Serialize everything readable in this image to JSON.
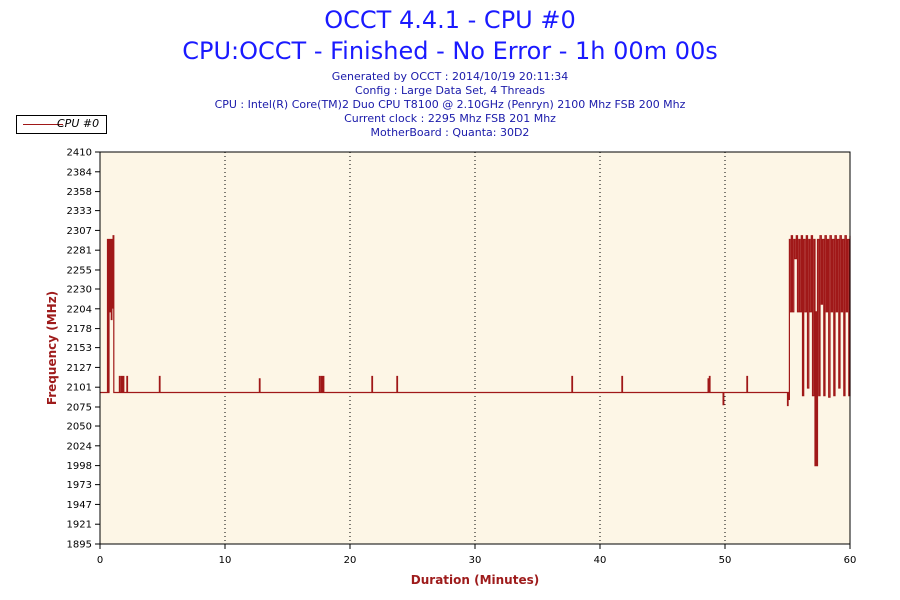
{
  "header": {
    "title": "OCCT 4.4.1 - CPU #0",
    "subtitle": "CPU:OCCT - Finished - No Error - 1h 00m 00s",
    "info": [
      "Generated by OCCT : 2014/10/19 20:11:34",
      "Config : Large Data Set, 4 Threads",
      "CPU : Intel(R) Core(TM)2 Duo CPU T8100 @ 2.10GHz (Penryn) 2100 Mhz FSB 200 Mhz",
      "Current clock : 2295 Mhz FSB 201 Mhz",
      "MotherBoard : Quanta: 30D2"
    ]
  },
  "colors": {
    "series": "#a01818",
    "plot_bg": "#fdf6e6",
    "axis_label": "#9e1b1b",
    "title": "#1a1aff"
  },
  "chart_data": {
    "type": "line",
    "title": "OCCT 4.4.1 - CPU #0",
    "xlabel": "Duration (Minutes)",
    "ylabel": "Frequency (MHz)",
    "xlim": [
      0,
      60
    ],
    "ylim": [
      1895,
      2410
    ],
    "x_ticks": [
      0,
      10,
      20,
      30,
      40,
      50,
      60
    ],
    "y_ticks": [
      1895,
      1921,
      1947,
      1973,
      1998,
      2024,
      2050,
      2075,
      2101,
      2127,
      2153,
      2178,
      2204,
      2230,
      2255,
      2281,
      2307,
      2333,
      2358,
      2384,
      2410
    ],
    "grid": "vertical dotted at x ticks",
    "legend": {
      "position": "top-left",
      "entries": [
        "CPU #0"
      ]
    },
    "series": [
      {
        "name": "CPU #0",
        "baseline_mhz": 2094,
        "points": [
          [
            0.55,
            2094
          ],
          [
            0.6,
            2295
          ],
          [
            0.65,
            2094
          ],
          [
            0.72,
            2295
          ],
          [
            0.78,
            2200
          ],
          [
            0.85,
            2295
          ],
          [
            0.9,
            2190
          ],
          [
            0.95,
            2295
          ],
          [
            1.0,
            2205
          ],
          [
            1.05,
            2300
          ],
          [
            1.1,
            2094
          ],
          [
            1.5,
            2094
          ],
          [
            1.55,
            2115
          ],
          [
            1.6,
            2094
          ],
          [
            1.7,
            2115
          ],
          [
            1.75,
            2094
          ],
          [
            1.85,
            2115
          ],
          [
            1.9,
            2094
          ],
          [
            2.1,
            2094
          ],
          [
            2.15,
            2115
          ],
          [
            2.2,
            2094
          ],
          [
            4.7,
            2094
          ],
          [
            4.75,
            2115
          ],
          [
            4.8,
            2094
          ],
          [
            12.7,
            2094
          ],
          [
            12.75,
            2112
          ],
          [
            12.8,
            2094
          ],
          [
            17.5,
            2094
          ],
          [
            17.55,
            2115
          ],
          [
            17.6,
            2094
          ],
          [
            17.7,
            2115
          ],
          [
            17.75,
            2094
          ],
          [
            17.85,
            2115
          ],
          [
            17.9,
            2094
          ],
          [
            21.7,
            2094
          ],
          [
            21.75,
            2115
          ],
          [
            21.8,
            2094
          ],
          [
            23.7,
            2094
          ],
          [
            23.75,
            2115
          ],
          [
            23.8,
            2094
          ],
          [
            37.7,
            2094
          ],
          [
            37.75,
            2115
          ],
          [
            37.8,
            2094
          ],
          [
            41.7,
            2094
          ],
          [
            41.75,
            2115
          ],
          [
            41.8,
            2094
          ],
          [
            48.6,
            2094
          ],
          [
            48.65,
            2112
          ],
          [
            48.7,
            2094
          ],
          [
            48.75,
            2115
          ],
          [
            48.8,
            2094
          ],
          [
            49.8,
            2094
          ],
          [
            49.85,
            2078
          ],
          [
            49.9,
            2094
          ],
          [
            51.7,
            2094
          ],
          [
            51.75,
            2115
          ],
          [
            51.8,
            2094
          ],
          [
            54.9,
            2094
          ],
          [
            55.0,
            2077
          ],
          [
            55.05,
            2094
          ],
          [
            55.1,
            2085
          ],
          [
            55.15,
            2295
          ],
          [
            55.2,
            2200
          ],
          [
            55.3,
            2300
          ],
          [
            55.4,
            2200
          ],
          [
            55.5,
            2295
          ],
          [
            55.6,
            2270
          ],
          [
            55.7,
            2300
          ],
          [
            55.8,
            2200
          ],
          [
            55.9,
            2295
          ],
          [
            56.0,
            2200
          ],
          [
            56.1,
            2300
          ],
          [
            56.2,
            2090
          ],
          [
            56.3,
            2295
          ],
          [
            56.4,
            2200
          ],
          [
            56.5,
            2300
          ],
          [
            56.6,
            2100
          ],
          [
            56.7,
            2295
          ],
          [
            56.8,
            2200
          ],
          [
            56.9,
            2300
          ],
          [
            57.0,
            2090
          ],
          [
            57.1,
            2295
          ],
          [
            57.2,
            1998
          ],
          [
            57.25,
            2200
          ],
          [
            57.3,
            1998
          ],
          [
            57.4,
            2295
          ],
          [
            57.5,
            2090
          ],
          [
            57.6,
            2300
          ],
          [
            57.7,
            2210
          ],
          [
            57.8,
            2295
          ],
          [
            57.9,
            2090
          ],
          [
            58.0,
            2300
          ],
          [
            58.1,
            2200
          ],
          [
            58.2,
            2295
          ],
          [
            58.3,
            2088
          ],
          [
            58.4,
            2300
          ],
          [
            58.5,
            2200
          ],
          [
            58.6,
            2295
          ],
          [
            58.7,
            2090
          ],
          [
            58.8,
            2300
          ],
          [
            58.9,
            2200
          ],
          [
            59.0,
            2295
          ],
          [
            59.1,
            2100
          ],
          [
            59.2,
            2300
          ],
          [
            59.3,
            2200
          ],
          [
            59.4,
            2295
          ],
          [
            59.5,
            2090
          ],
          [
            59.6,
            2300
          ],
          [
            59.7,
            2200
          ],
          [
            59.8,
            2295
          ],
          [
            59.9,
            2090
          ],
          [
            60.0,
            2300
          ]
        ]
      }
    ]
  }
}
